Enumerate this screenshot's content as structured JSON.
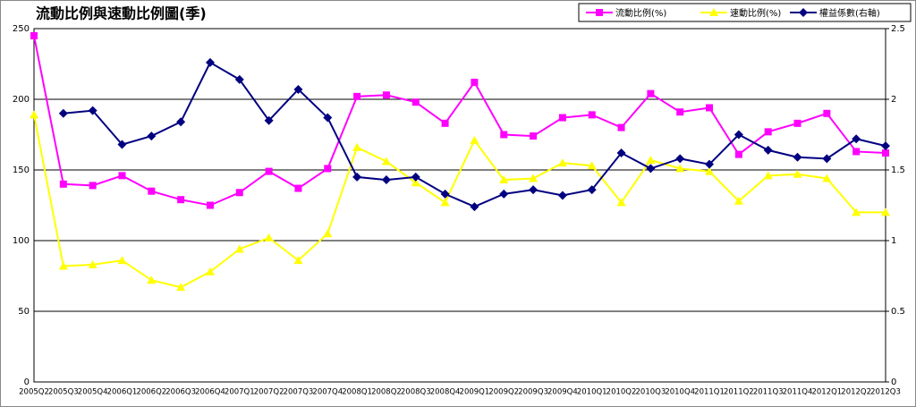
{
  "chart_data": {
    "type": "line",
    "title": "流動比例與速動比例圖(季)",
    "categories": [
      "2005Q2",
      "2005Q3",
      "2005Q4",
      "2006Q1",
      "2006Q2",
      "2006Q3",
      "2006Q4",
      "2007Q1",
      "2007Q2",
      "2007Q3",
      "2007Q4",
      "2008Q1",
      "2008Q2",
      "2008Q3",
      "2008Q4",
      "2009Q1",
      "2009Q2",
      "2009Q3",
      "2009Q4",
      "2010Q1",
      "2010Q2",
      "2010Q3",
      "2010Q4",
      "2011Q1",
      "2011Q2",
      "2011Q3",
      "2011Q4",
      "2012Q1",
      "2012Q2",
      "2012Q3"
    ],
    "series": [
      {
        "name": "流動比例(%)",
        "color": "#ff00ff",
        "marker": "square",
        "values": [
          245,
          140,
          139,
          146,
          135,
          129,
          125,
          134,
          149,
          137,
          151,
          202,
          203,
          198,
          183,
          212,
          175,
          174,
          187,
          189,
          180,
          204,
          191,
          194,
          161,
          177,
          183,
          190,
          163,
          162
        ]
      },
      {
        "name": "速動比例(%)",
        "color": "#ffff00",
        "marker": "triangle",
        "values": [
          189,
          82,
          83,
          86,
          72,
          67,
          78,
          94,
          102,
          86,
          105,
          166,
          156,
          141,
          127,
          171,
          143,
          144,
          155,
          153,
          127,
          157,
          151,
          149,
          128,
          146,
          147,
          144,
          120,
          120
        ]
      },
      {
        "name": "權益係數(右軸)",
        "color": "#000080",
        "marker": "diamond",
        "axis": "y2",
        "values": [
          null,
          1.9,
          1.92,
          1.68,
          1.74,
          1.84,
          2.26,
          2.14,
          1.85,
          2.07,
          1.87,
          1.45,
          1.43,
          1.45,
          1.33,
          1.24,
          1.33,
          1.36,
          1.32,
          1.36,
          1.62,
          1.51,
          1.58,
          1.54,
          1.75,
          1.64,
          1.59,
          1.58,
          1.72,
          1.67
        ]
      }
    ],
    "ylim": [
      0,
      250
    ],
    "yticks": [
      0,
      50,
      100,
      150,
      200,
      250
    ],
    "y2lim": [
      0,
      2.5
    ],
    "y2ticks": [
      0,
      0.5,
      1,
      1.5,
      2,
      2.5
    ],
    "grid": true,
    "legend": "top-right"
  }
}
